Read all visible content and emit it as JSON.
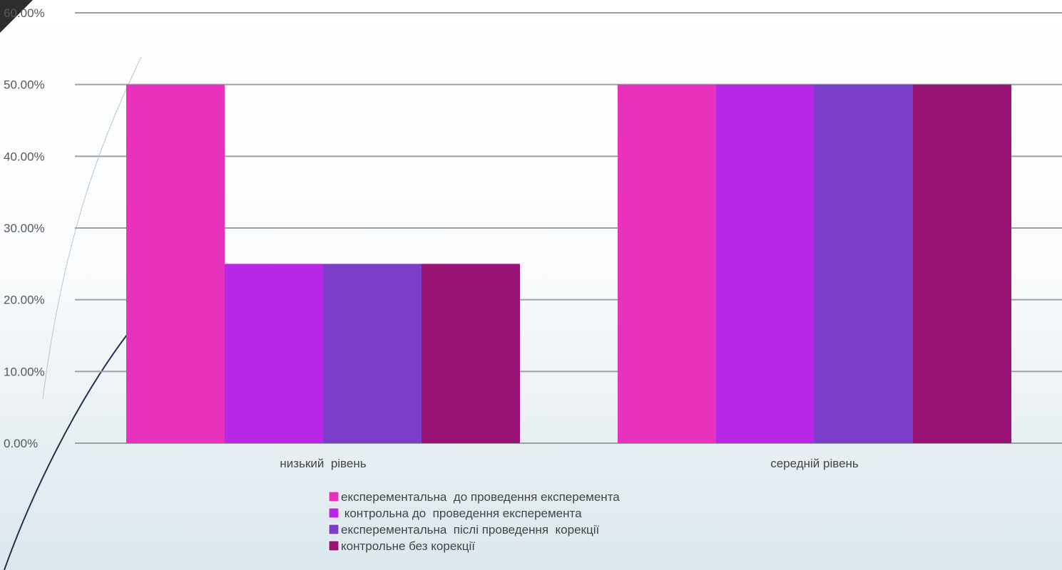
{
  "chart_data": {
    "type": "bar",
    "categories": [
      "низький  рівень",
      "середній рівень"
    ],
    "series": [
      {
        "name": "експерементальна  до проведення експеремента",
        "values": [
          50,
          50
        ],
        "color": "#e832bd"
      },
      {
        "name": " контрольна до  проведення експеремента",
        "values": [
          25,
          50
        ],
        "color": "#b927e6"
      },
      {
        "name": "експерементальна  післі проведення  корекції",
        "values": [
          25,
          50
        ],
        "color": "#7a3ec9"
      },
      {
        "name": "контрольне без корекції",
        "values": [
          25,
          50
        ],
        "color": "#991276"
      }
    ],
    "yticks": [
      "0.00%",
      "10.00%",
      "20.00%",
      "30.00%",
      "40.00%",
      "50.00%",
      "60.00%"
    ],
    "ylim": [
      0,
      60
    ],
    "grid": true,
    "legend_position": "bottom",
    "title": "",
    "xlabel": "",
    "ylabel": ""
  },
  "colors": {
    "gridline": "#9aa1a6",
    "decor_line": "#1f3550",
    "corner": "#2e2e2e"
  }
}
